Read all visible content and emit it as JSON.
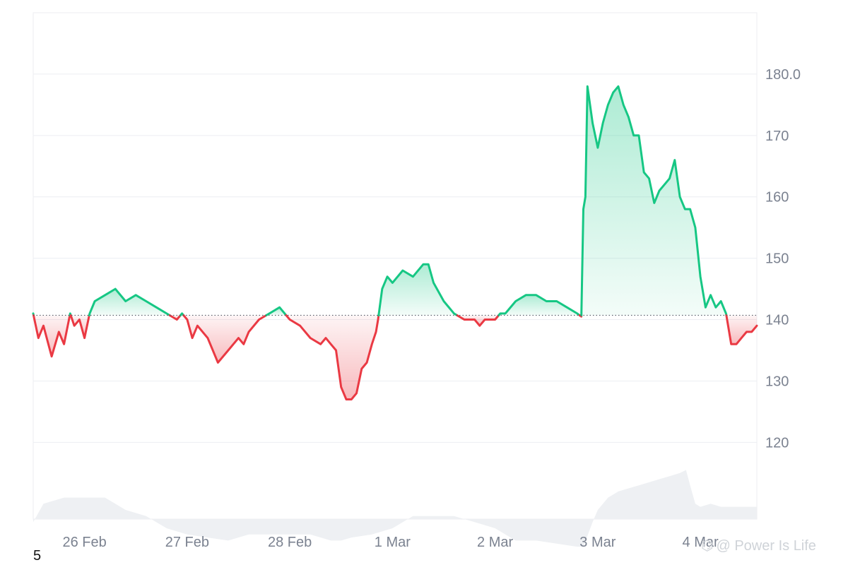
{
  "page_number": "5",
  "watermark": {
    "icon": "link-icon",
    "text": "@ Power Is Life"
  },
  "colors": {
    "up": "#16c784",
    "down": "#ea3943",
    "up_fill_top": "#16c784",
    "down_fill": "#ea3943",
    "volume": "#eef0f3",
    "grid": "#eceef2",
    "tick_text": "#7b8290",
    "baseline": "#555b66"
  },
  "chart_data": {
    "type": "area",
    "title": "",
    "xlabel": "",
    "ylabel": "",
    "grid": true,
    "baseline": 140.7,
    "ylim": [
      107.5,
      190
    ],
    "yticks": [
      {
        "value": 120,
        "label": "120"
      },
      {
        "value": 130,
        "label": "130"
      },
      {
        "value": 140,
        "label": "140"
      },
      {
        "value": 150,
        "label": "150"
      },
      {
        "value": 160,
        "label": "160"
      },
      {
        "value": 170,
        "label": "170"
      },
      {
        "value": 180,
        "label": "180.0"
      }
    ],
    "xlim": [
      25.5,
      32.55
    ],
    "xticks": [
      {
        "value": 26,
        "label": "26 Feb"
      },
      {
        "value": 27,
        "label": "27 Feb"
      },
      {
        "value": 28,
        "label": "28 Feb"
      },
      {
        "value": 29,
        "label": "1 Mar"
      },
      {
        "value": 30,
        "label": "2 Mar"
      },
      {
        "value": 31,
        "label": "3 Mar"
      },
      {
        "value": 32,
        "label": "4 Mar"
      }
    ],
    "series": [
      {
        "x": [
          25.5,
          25.55,
          25.6,
          25.68,
          25.75,
          25.8,
          25.86,
          25.9,
          25.95,
          26.0,
          26.05,
          26.1,
          26.2,
          26.3,
          26.4,
          26.5,
          26.6,
          26.7,
          26.8,
          26.9,
          26.95,
          27.0,
          27.05,
          27.1,
          27.2,
          27.3,
          27.4,
          27.5,
          27.55,
          27.6,
          27.7,
          27.8,
          27.9,
          28.0,
          28.1,
          28.2,
          28.3,
          28.35,
          28.4,
          28.45,
          28.5,
          28.55,
          28.6,
          28.65,
          28.7,
          28.75,
          28.8,
          28.84,
          28.86,
          28.9,
          28.95,
          29.0,
          29.1,
          29.2,
          29.3,
          29.35,
          29.4,
          29.5,
          29.6,
          29.7,
          29.8,
          29.85,
          29.9,
          30.0,
          30.05,
          30.1,
          30.2,
          30.3,
          30.4,
          30.5,
          30.6,
          30.7,
          30.8,
          30.84,
          30.86,
          30.88,
          30.9,
          30.95,
          31.0,
          31.05,
          31.1,
          31.15,
          31.2,
          31.25,
          31.3,
          31.35,
          31.4,
          31.45,
          31.5,
          31.55,
          31.6,
          31.65,
          31.7,
          31.75,
          31.8,
          31.85,
          31.9,
          31.95,
          32.0,
          32.05,
          32.1,
          32.15,
          32.2,
          32.25,
          32.3,
          32.35,
          32.4,
          32.45,
          32.5,
          32.55
        ],
        "y": [
          141,
          137,
          139,
          134,
          138,
          136,
          141,
          139,
          140,
          137,
          141,
          143,
          144,
          145,
          143,
          144,
          143,
          142,
          141,
          140,
          141,
          140,
          137,
          139,
          137,
          133,
          135,
          137,
          136,
          138,
          140,
          141,
          142,
          140,
          139,
          137,
          136,
          137,
          136,
          135,
          129,
          127,
          127,
          128,
          132,
          133,
          136,
          138,
          140,
          145,
          147,
          146,
          148,
          147,
          149,
          149,
          146,
          143,
          141,
          140,
          140,
          139,
          140,
          140,
          141,
          141,
          143,
          144,
          144,
          143,
          143,
          142,
          141,
          140.5,
          158,
          160,
          178,
          172,
          168,
          172,
          175,
          177,
          178,
          175,
          173,
          170,
          170,
          164,
          163,
          159,
          161,
          162,
          163,
          166,
          160,
          158,
          158,
          155,
          147,
          142,
          144,
          142,
          143,
          141,
          136,
          136,
          137,
          138,
          138,
          139
        ]
      }
    ],
    "volume": {
      "x": [
        25.5,
        25.6,
        25.8,
        26.0,
        26.2,
        26.4,
        26.6,
        26.8,
        27.0,
        27.2,
        27.4,
        27.6,
        27.8,
        28.0,
        28.2,
        28.4,
        28.5,
        28.6,
        28.8,
        29.0,
        29.2,
        29.4,
        29.6,
        29.8,
        30.0,
        30.2,
        30.4,
        30.6,
        30.8,
        30.86,
        30.95,
        31.0,
        31.1,
        31.2,
        31.3,
        31.4,
        31.5,
        31.6,
        31.7,
        31.8,
        31.86,
        31.9,
        31.95,
        32.0,
        32.1,
        32.2,
        32.3,
        32.4,
        32.55
      ],
      "y": [
        107,
        110,
        111,
        111,
        111,
        109,
        108,
        106,
        105,
        104.5,
        104,
        105,
        105,
        105,
        105,
        104,
        104,
        104.5,
        105,
        106,
        108,
        108,
        108,
        107,
        106,
        104,
        104,
        103.5,
        103,
        103,
        107,
        109,
        111,
        112,
        112.5,
        113,
        113.5,
        114,
        114.5,
        115,
        115.5,
        113,
        110,
        109.5,
        110,
        109.5,
        109.5,
        109.5,
        109.5
      ]
    }
  }
}
